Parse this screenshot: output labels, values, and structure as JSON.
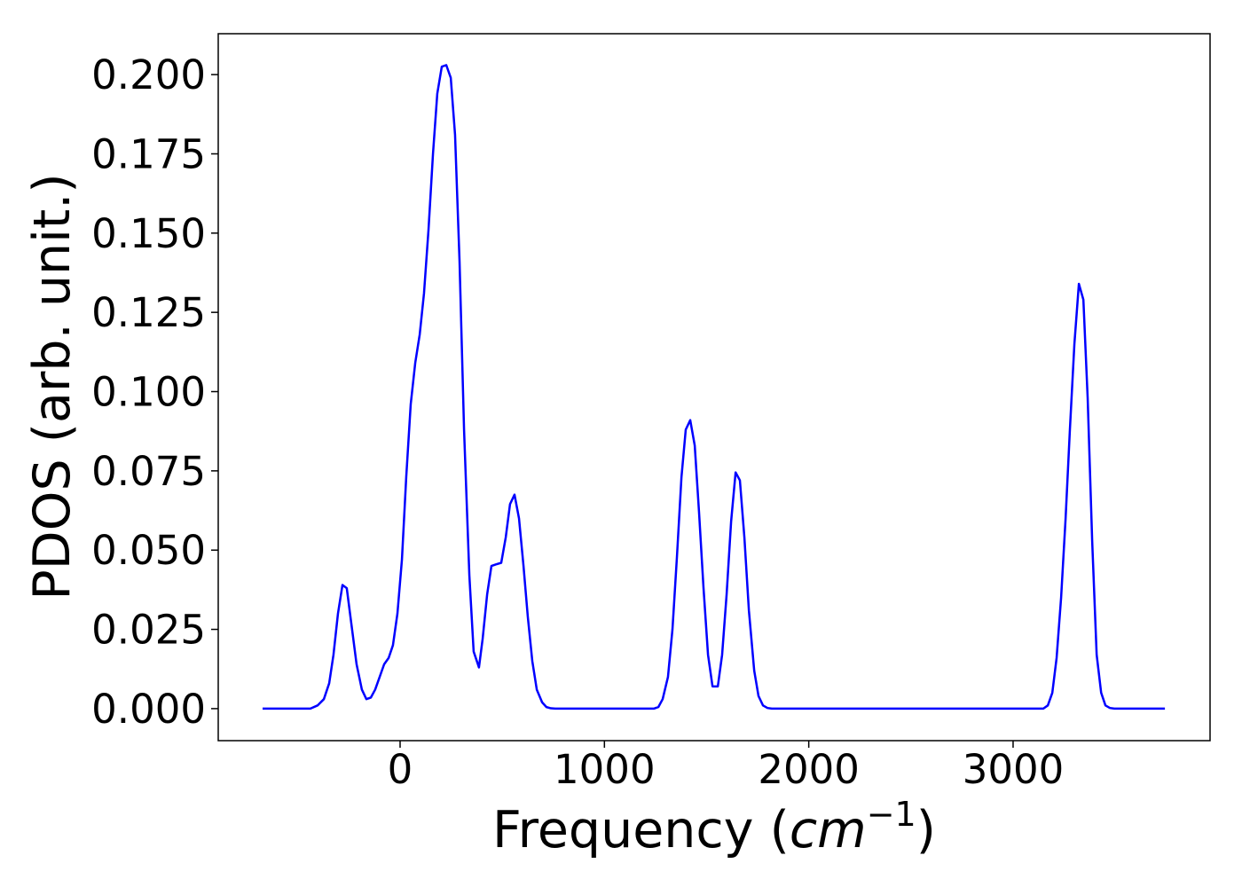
{
  "chart_data": {
    "type": "line",
    "xlabel": {
      "text": "Frequency (",
      "unit": "cm",
      "exponent": "−1",
      "close": ")"
    },
    "ylabel": "PDOS (arb. unit.)",
    "x": [
      -673,
      -439,
      -404,
      -373,
      -347,
      -326,
      -304,
      -282,
      -261,
      -239,
      -213,
      -187,
      -165,
      -143,
      -122,
      -100,
      -78,
      -56,
      -35,
      -13,
      9,
      30,
      52,
      74,
      96,
      117,
      139,
      161,
      182,
      204,
      226,
      248,
      269,
      291,
      313,
      339,
      360,
      386,
      404,
      426,
      447,
      469,
      495,
      517,
      538,
      560,
      582,
      604,
      625,
      647,
      669,
      695,
      716,
      738,
      760,
      1242,
      1264,
      1285,
      1311,
      1333,
      1355,
      1377,
      1398,
      1420,
      1442,
      1463,
      1485,
      1507,
      1529,
      1555,
      1576,
      1598,
      1620,
      1642,
      1663,
      1685,
      1707,
      1733,
      1754,
      1776,
      1798,
      1819,
      3148,
      3170,
      3192,
      3213,
      3235,
      3257,
      3278,
      3300,
      3322,
      3344,
      3365,
      3387,
      3409,
      3431,
      3452,
      3474,
      3496,
      3743
    ],
    "series": [
      {
        "name": "PDOS",
        "color": "#0000ff",
        "values": [
          0,
          0,
          0.001,
          0.003,
          0.008,
          0.017,
          0.03,
          0.039,
          0.038,
          0.027,
          0.014,
          0.006,
          0.003,
          0.0035,
          0.006,
          0.01,
          0.014,
          0.016,
          0.02,
          0.03,
          0.047,
          0.073,
          0.096,
          0.109,
          0.118,
          0.131,
          0.151,
          0.175,
          0.194,
          0.2025,
          0.203,
          0.199,
          0.181,
          0.141,
          0.088,
          0.042,
          0.018,
          0.013,
          0.022,
          0.036,
          0.045,
          0.0455,
          0.046,
          0.054,
          0.0645,
          0.0675,
          0.06,
          0.045,
          0.029,
          0.015,
          0.006,
          0.002,
          0.0005,
          0.0001,
          0,
          0,
          0.0005,
          0.003,
          0.01,
          0.025,
          0.048,
          0.073,
          0.088,
          0.091,
          0.083,
          0.062,
          0.038,
          0.017,
          0.007,
          0.007,
          0.017,
          0.036,
          0.059,
          0.0745,
          0.072,
          0.054,
          0.031,
          0.012,
          0.004,
          0.001,
          0.0002,
          0,
          0,
          0.001,
          0.005,
          0.016,
          0.035,
          0.06,
          0.088,
          0.115,
          0.134,
          0.129,
          0.098,
          0.053,
          0.017,
          0.005,
          0.001,
          0.0002,
          0,
          0
        ]
      }
    ],
    "xlim": [
      -890,
      3964
    ],
    "ylim": [
      -0.0101,
      0.2129
    ],
    "xticks": [
      0,
      1000,
      2000,
      3000
    ],
    "yticks": [
      {
        "value": 0,
        "label": "0.000"
      },
      {
        "value": 0.025,
        "label": "0.025"
      },
      {
        "value": 0.05,
        "label": "0.050"
      },
      {
        "value": 0.075,
        "label": "0.075"
      },
      {
        "value": 0.1,
        "label": "0.100"
      },
      {
        "value": 0.125,
        "label": "0.125"
      },
      {
        "value": 0.15,
        "label": "0.150"
      },
      {
        "value": 0.175,
        "label": "0.175"
      },
      {
        "value": 0.2,
        "label": "0.200"
      }
    ],
    "grid": false
  }
}
